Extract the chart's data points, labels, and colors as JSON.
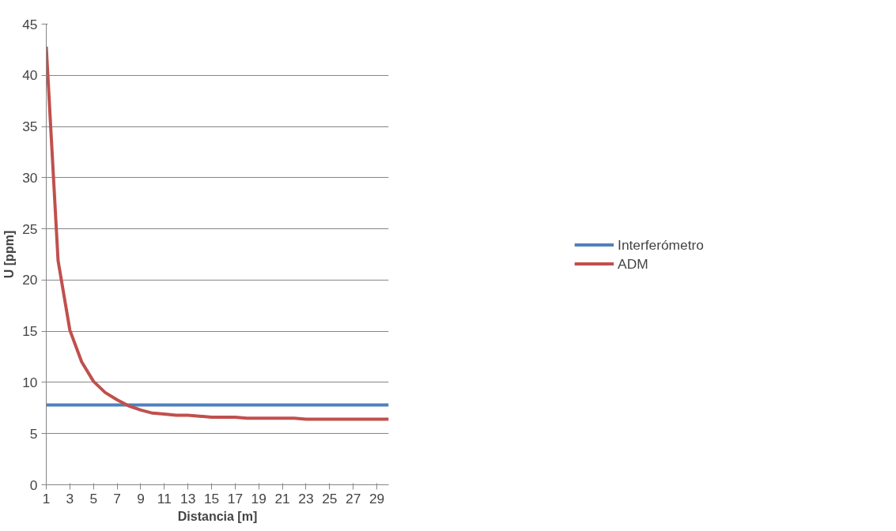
{
  "chart_data": {
    "type": "line",
    "xlabel": "Distancia [m]",
    "ylabel": "U [ppm]",
    "x": [
      1,
      2,
      3,
      4,
      5,
      6,
      7,
      8,
      9,
      10,
      11,
      12,
      13,
      14,
      15,
      16,
      17,
      18,
      19,
      20,
      21,
      22,
      23,
      24,
      25,
      26,
      27,
      28,
      29,
      30
    ],
    "series": [
      {
        "name": "Interferómetro",
        "color": "#4f81bd",
        "values": [
          7.8,
          7.8,
          7.8,
          7.8,
          7.8,
          7.8,
          7.8,
          7.8,
          7.8,
          7.8,
          7.8,
          7.8,
          7.8,
          7.8,
          7.8,
          7.8,
          7.8,
          7.8,
          7.8,
          7.8,
          7.8,
          7.8,
          7.8,
          7.8,
          7.8,
          7.8,
          7.8,
          7.8,
          7.8,
          7.8
        ]
      },
      {
        "name": "ADM",
        "color": "#c0504d",
        "values": [
          42.8,
          21.9,
          15.1,
          12.0,
          10.1,
          9.0,
          8.3,
          7.7,
          7.3,
          7.0,
          6.9,
          6.8,
          6.8,
          6.7,
          6.6,
          6.6,
          6.6,
          6.5,
          6.5,
          6.5,
          6.5,
          6.5,
          6.4,
          6.4,
          6.4,
          6.4,
          6.4,
          6.4,
          6.4,
          6.4
        ]
      }
    ],
    "xlim": [
      1,
      30
    ],
    "xticks": [
      1,
      3,
      5,
      7,
      9,
      11,
      13,
      15,
      17,
      19,
      21,
      23,
      25,
      27,
      29
    ],
    "ylim": [
      0,
      45
    ],
    "yticks": [
      0,
      5,
      10,
      15,
      20,
      25,
      30,
      35,
      40,
      45
    ],
    "grid": "y",
    "legend": "right",
    "marker": "none",
    "line_style": "solid"
  }
}
